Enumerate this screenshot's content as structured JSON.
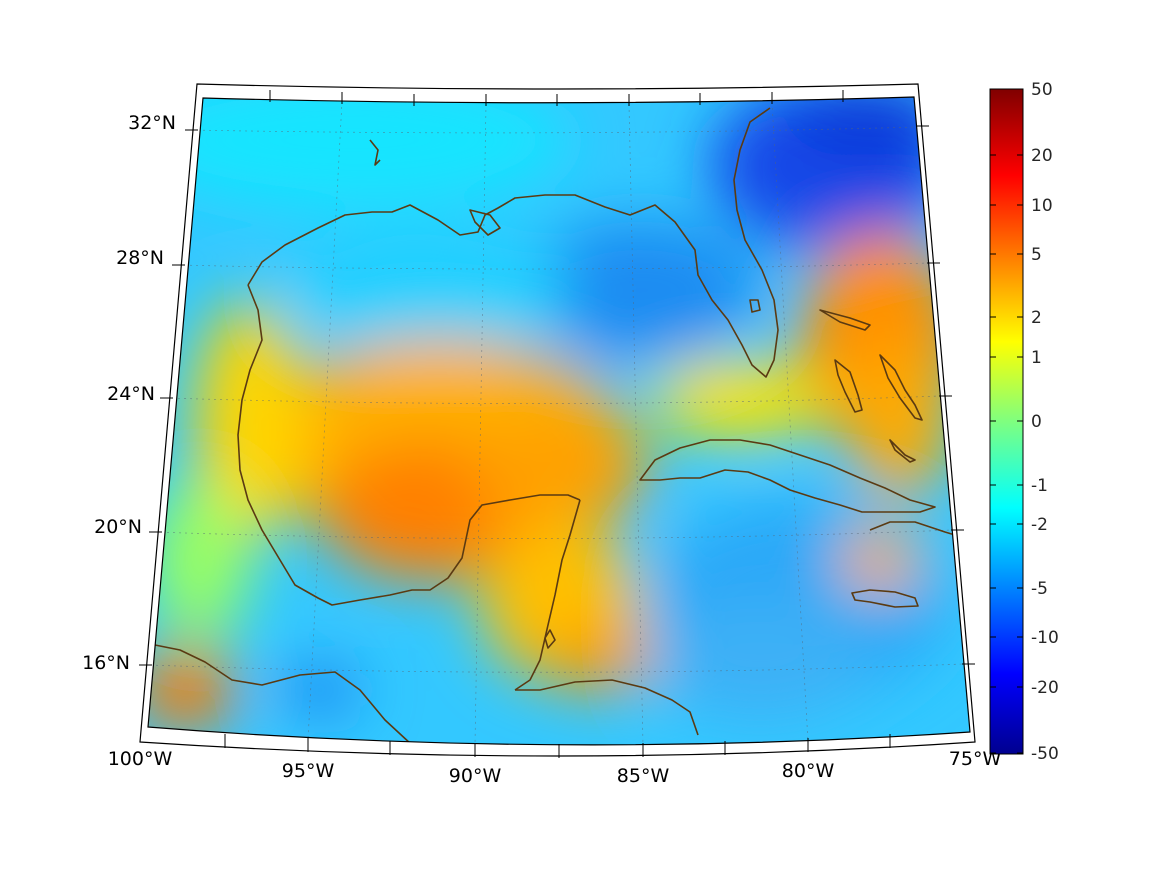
{
  "map": {
    "projection": "conic",
    "lon_labels": [
      "100°W",
      "95°W",
      "90°W",
      "85°W",
      "80°W",
      "75°W"
    ],
    "lat_labels": [
      "32°N",
      "28°N",
      "24°N",
      "20°N",
      "16°N"
    ],
    "frame_color": "#ffffff",
    "coastline_color": "#5a3a12",
    "grid": "on"
  },
  "colorbar": {
    "labels": [
      "50",
      "20",
      "10",
      "5",
      "2",
      "1",
      "0",
      "-1",
      "-2",
      "-5",
      "-10",
      "-20",
      "-50"
    ],
    "colormap": "jet",
    "top_color": "#800000",
    "bottom_color": "#000080"
  }
}
